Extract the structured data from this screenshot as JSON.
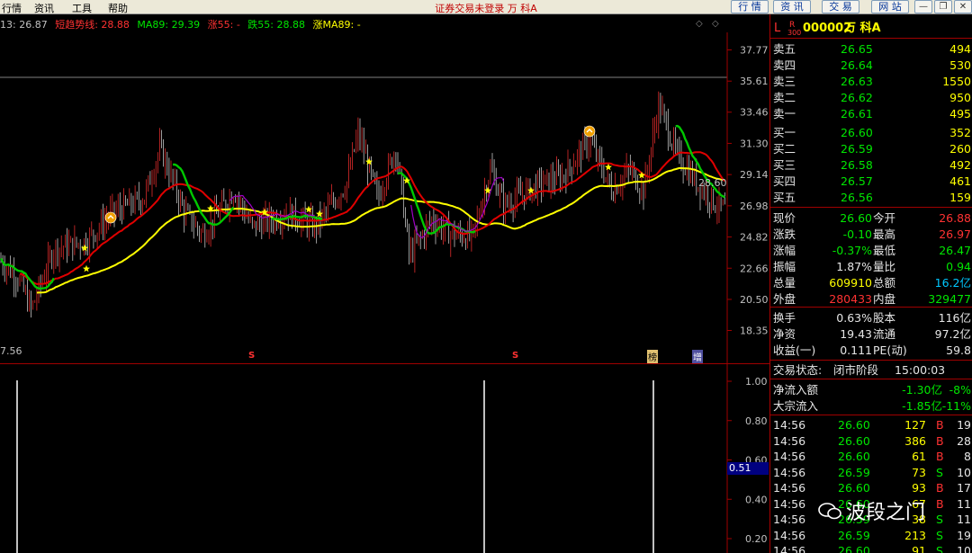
{
  "menu": {
    "market": "行情",
    "info": "资讯",
    "tools": "工具",
    "help": "帮助"
  },
  "window_title": "证券交易未登录  万 科A",
  "top_buttons": [
    "行 情",
    "资 讯",
    "交 易",
    "网 站"
  ],
  "window_controls": {
    "min": "—",
    "restore": "❐",
    "close": "✕"
  },
  "legend": {
    "date_value": "13: 26.87",
    "trend_line": "短趋势线: 28.88",
    "ma89": "MA89: 29.39",
    "rise55": "涨55: -",
    "fall55": "跌55: 28.88",
    "rise_ma89": "涨MA89: -"
  },
  "price_axis": [
    "37.77",
    "35.61",
    "33.46",
    "31.30",
    "29.14",
    "26.98",
    "24.82",
    "22.66",
    "20.50",
    "18.35"
  ],
  "price_marker": "28.60",
  "low_label": "7.56",
  "event_markers": {
    "s1": "S",
    "s2": "S",
    "bang": "榜",
    "zeng": "增"
  },
  "volume_axis": [
    "1.00",
    "0.80",
    "0.60",
    "0.40",
    "0.20"
  ],
  "volume_current": "0.51",
  "stock": {
    "flag": "L",
    "flag2": "R",
    "market": "300",
    "code": "000002",
    "name": "万 科A"
  },
  "sell_orders": [
    {
      "label": "卖五",
      "price": "26.65",
      "vol": "494"
    },
    {
      "label": "卖四",
      "price": "26.64",
      "vol": "530"
    },
    {
      "label": "卖三",
      "price": "26.63",
      "vol": "1550"
    },
    {
      "label": "卖二",
      "price": "26.62",
      "vol": "950"
    },
    {
      "label": "卖一",
      "price": "26.61",
      "vol": "495"
    }
  ],
  "buy_orders": [
    {
      "label": "买一",
      "price": "26.60",
      "vol": "352"
    },
    {
      "label": "买二",
      "price": "26.59",
      "vol": "260"
    },
    {
      "label": "买三",
      "price": "26.58",
      "vol": "492"
    },
    {
      "label": "买四",
      "price": "26.57",
      "vol": "461"
    },
    {
      "label": "买五",
      "price": "26.56",
      "vol": "159"
    }
  ],
  "stats": [
    {
      "l1": "现价",
      "v1": "26.60",
      "l2": "今开",
      "v2": "26.88"
    },
    {
      "l1": "涨跌",
      "v1": "-0.10",
      "l2": "最高",
      "v2": "26.97"
    },
    {
      "l1": "涨幅",
      "v1": "-0.37%",
      "l2": "最低",
      "v2": "26.47"
    },
    {
      "l1": "振幅",
      "v1": "1.87%",
      "l2": "量比",
      "v2": "0.94"
    },
    {
      "l1": "总量",
      "v1": "609910",
      "l2": "总额",
      "v2": "16.2亿"
    },
    {
      "l1": "外盘",
      "v1": "280433",
      "l2": "内盘",
      "v2": "329477"
    }
  ],
  "stats2": [
    {
      "l1": "换手",
      "v1": "0.63%",
      "l2": "股本",
      "v2": "116亿"
    },
    {
      "l1": "净资",
      "v1": "19.43",
      "l2": "流通",
      "v2": "97.2亿"
    },
    {
      "l1": "收益(一)",
      "v1": "0.111",
      "l2": "PE(动)",
      "v2": "59.8"
    }
  ],
  "trade_status": {
    "label": "交易状态:",
    "state": "闭市阶段",
    "time": "15:00:03"
  },
  "flows": [
    {
      "label": "净流入额",
      "value": "-1.30亿",
      "pct": "-8%"
    },
    {
      "label": "大宗流入",
      "value": "-1.85亿",
      "pct": "-11%"
    }
  ],
  "ticks": [
    {
      "time": "14:56",
      "price": "26.60",
      "vol": "127",
      "side": "B",
      "n": "19"
    },
    {
      "time": "14:56",
      "price": "26.60",
      "vol": "386",
      "side": "B",
      "n": "28"
    },
    {
      "time": "14:56",
      "price": "26.60",
      "vol": "61",
      "side": "B",
      "n": "8"
    },
    {
      "time": "14:56",
      "price": "26.59",
      "vol": "73",
      "side": "S",
      "n": "10"
    },
    {
      "time": "14:56",
      "price": "26.60",
      "vol": "93",
      "side": "B",
      "n": "17"
    },
    {
      "time": "14:56",
      "price": "26.60",
      "vol": "67",
      "side": "B",
      "n": "11"
    },
    {
      "time": "14:56",
      "price": "26.59",
      "vol": "38",
      "side": "S",
      "n": "11"
    },
    {
      "time": "14:56",
      "price": "26.59",
      "vol": "213",
      "side": "S",
      "n": "19"
    },
    {
      "time": "14:56",
      "price": "26.60",
      "vol": "91",
      "side": "S",
      "n": "10"
    }
  ],
  "watermark": "波段之门",
  "colors": {
    "up": "#ff3232",
    "down": "#00e600",
    "ma_yellow": "#ffff00",
    "ma_red": "#e00000",
    "ma_green": "#00c800",
    "ma_purple": "#a000c8"
  }
}
